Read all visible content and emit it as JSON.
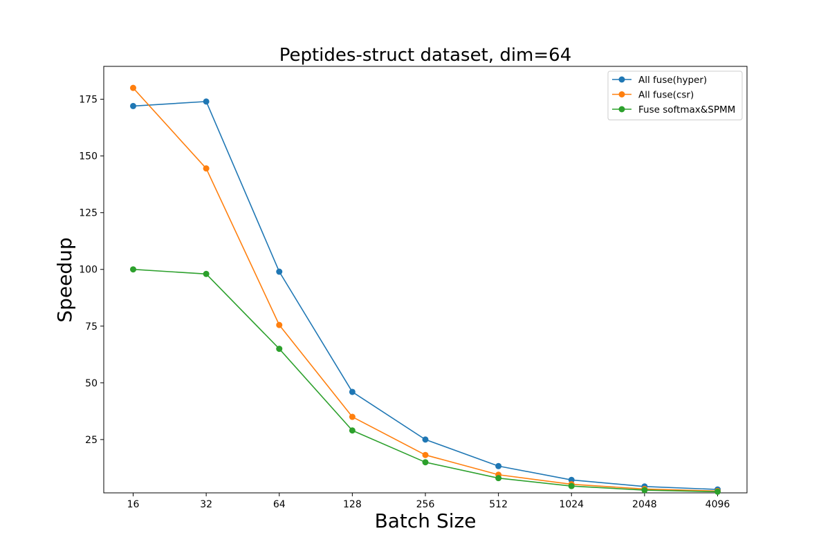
{
  "chart_data": {
    "type": "line",
    "title": "Peptides-struct dataset, dim=64",
    "xlabel": "Batch Size",
    "ylabel": "Speedup",
    "categories": [
      "16",
      "32",
      "64",
      "128",
      "256",
      "512",
      "1024",
      "2048",
      "4096"
    ],
    "yticks": [
      25,
      50,
      75,
      100,
      125,
      150,
      175
    ],
    "ylim": [
      1.5,
      189.5
    ],
    "grid": false,
    "legend_position": "top-right",
    "series": [
      {
        "name": "All fuse(hyper)",
        "color": "#1f77b4",
        "values": [
          172,
          174,
          99,
          46,
          25,
          13.3,
          7.2,
          4.3,
          3.0
        ]
      },
      {
        "name": "All fuse(csr)",
        "color": "#ff7f0e",
        "values": [
          180,
          144.5,
          75.5,
          35,
          18.2,
          9.5,
          5.3,
          3.2,
          2.3
        ]
      },
      {
        "name": "Fuse softmax&SPMM",
        "color": "#2ca02c",
        "values": [
          100,
          98,
          65,
          29,
          15,
          8.0,
          4.5,
          2.7,
          2.0
        ]
      }
    ]
  }
}
